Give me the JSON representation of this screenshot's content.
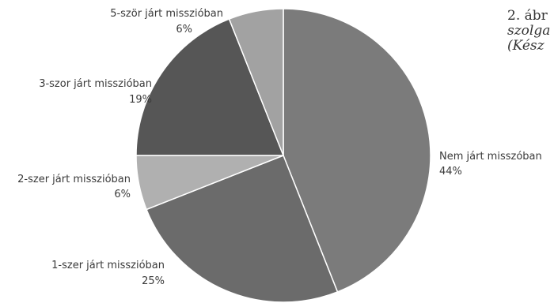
{
  "chart_data": {
    "type": "pie",
    "slices": [
      {
        "label": "Nem járt misszóban",
        "value_text": "44%",
        "value": 44,
        "color": "#7b7b7b"
      },
      {
        "label": "1-szer járt misszióban",
        "value_text": "25%",
        "value": 25,
        "color": "#6b6b6b"
      },
      {
        "label": "2-szer járt misszióban",
        "value_text": "6%",
        "value": 6,
        "color": "#b0b0b0"
      },
      {
        "label": "3-szor járt misszióban",
        "value_text": "19%",
        "value": 19,
        "color": "#565656"
      },
      {
        "label": "5-ször járt misszióban",
        "value_text": "6%",
        "value": 6,
        "color": "#a2a2a2"
      }
    ]
  },
  "caption": {
    "line1": "2. ábr",
    "line2": "szolga",
    "line3": "(Kész"
  }
}
